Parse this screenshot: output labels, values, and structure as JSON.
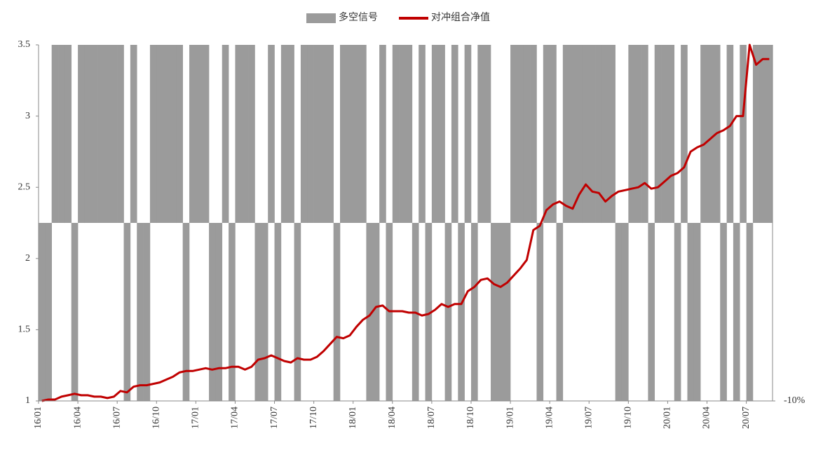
{
  "chart_data": {
    "type": "combo",
    "categories": [
      "16/01",
      null,
      null,
      null,
      null,
      null,
      "16/04",
      null,
      null,
      null,
      null,
      null,
      "16/07",
      null,
      null,
      null,
      null,
      null,
      "16/10",
      null,
      null,
      null,
      null,
      null,
      "17/01",
      null,
      null,
      null,
      null,
      null,
      "17/04",
      null,
      null,
      null,
      null,
      null,
      "17/07",
      null,
      null,
      null,
      null,
      null,
      "17/10",
      null,
      null,
      null,
      null,
      null,
      "18/01",
      null,
      null,
      null,
      null,
      null,
      "18/04",
      null,
      null,
      null,
      null,
      null,
      "18/07",
      null,
      null,
      null,
      null,
      null,
      "18/10",
      null,
      null,
      null,
      null,
      null,
      "19/01",
      null,
      null,
      null,
      null,
      null,
      "19/04",
      null,
      null,
      null,
      null,
      null,
      "19/07",
      null,
      null,
      null,
      null,
      null,
      "19/10",
      null,
      null,
      null,
      null,
      null,
      "20/01",
      null,
      null,
      null,
      null,
      null,
      "20/04",
      null,
      null,
      null,
      null,
      null,
      "20/07",
      null,
      null,
      null
    ],
    "series": [
      {
        "name": "多空信号",
        "type": "bar",
        "axis": "y2",
        "color": "#9b9b9b",
        "values": [
          -10,
          -10,
          10,
          10,
          10,
          -10,
          10,
          10,
          10,
          10,
          10,
          10,
          10,
          -10,
          10,
          -10,
          -10,
          10,
          10,
          10,
          10,
          10,
          -10,
          10,
          10,
          10,
          -10,
          -10,
          10,
          -10,
          10,
          10,
          10,
          -10,
          -10,
          10,
          -10,
          10,
          10,
          -10,
          10,
          10,
          10,
          10,
          10,
          -10,
          10,
          10,
          10,
          10,
          -10,
          -10,
          10,
          -10,
          10,
          10,
          10,
          -10,
          10,
          -10,
          10,
          10,
          -10,
          10,
          -10,
          10,
          -10,
          10,
          10,
          -10,
          -10,
          -10,
          10,
          10,
          10,
          10,
          -10,
          10,
          10,
          -10,
          10,
          10,
          10,
          10,
          10,
          10,
          10,
          10,
          -10,
          -10,
          10,
          10,
          10,
          -10,
          10,
          10,
          10,
          -10,
          10,
          -10,
          -10,
          10,
          10,
          10,
          -10,
          10,
          -10,
          10,
          -10,
          10,
          10,
          10
        ]
      },
      {
        "name": "对冲组合净值",
        "type": "line",
        "color": "#c00000",
        "values": [
          1.0,
          1.01,
          1.01,
          1.03,
          1.04,
          1.05,
          1.04,
          1.04,
          1.03,
          1.03,
          1.02,
          1.03,
          1.07,
          1.06,
          1.1,
          1.11,
          1.11,
          1.12,
          1.13,
          1.15,
          1.17,
          1.2,
          1.21,
          1.21,
          1.22,
          1.23,
          1.22,
          1.23,
          1.23,
          1.24,
          1.24,
          1.22,
          1.24,
          1.29,
          1.3,
          1.32,
          1.3,
          1.28,
          1.27,
          1.3,
          1.29,
          1.29,
          1.31,
          1.35,
          1.4,
          1.45,
          1.44,
          1.46,
          1.52,
          1.57,
          1.6,
          1.66,
          1.67,
          1.63,
          1.63,
          1.63,
          1.62,
          1.62,
          1.6,
          1.61,
          1.64,
          1.68,
          1.66,
          1.68,
          1.68,
          1.77,
          1.8,
          1.85,
          1.86,
          1.82,
          1.8,
          1.83,
          1.88,
          1.93,
          1.99,
          2.2,
          2.23,
          2.34,
          2.38,
          2.4,
          2.37,
          2.35,
          2.45,
          2.52,
          2.47,
          2.46,
          2.4,
          2.44,
          2.47,
          2.48,
          2.49,
          2.5,
          2.53,
          2.49,
          2.5,
          2.54,
          2.58,
          2.6,
          2.64,
          2.75,
          2.78,
          2.8,
          2.84,
          2.88,
          2.9,
          2.93,
          3.0,
          3.0,
          3.5,
          3.36,
          3.4,
          3.4
        ]
      }
    ],
    "ylim": [
      1,
      3.5
    ],
    "yticks": [
      1,
      1.5,
      2,
      2.5,
      3,
      3.5
    ],
    "y2lim": [
      -10,
      10
    ],
    "y2ticks": [
      {
        "value": -10,
        "label": "-10%"
      }
    ],
    "legend": "top"
  }
}
